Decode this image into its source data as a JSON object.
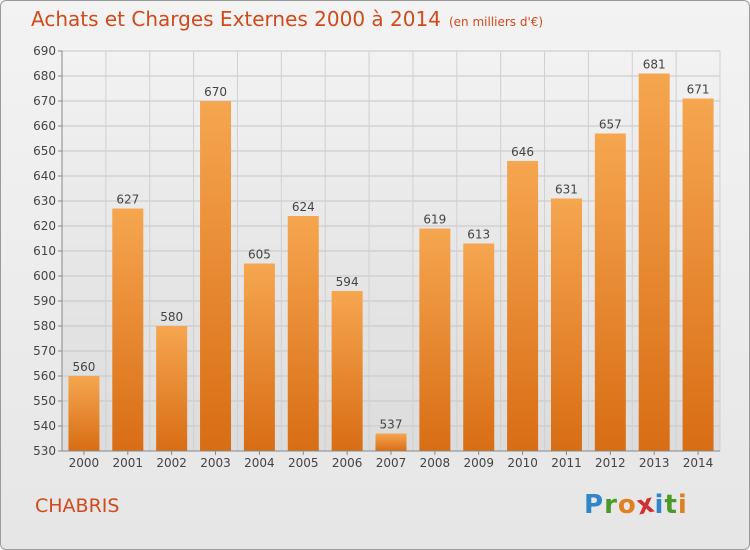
{
  "title": "Achats et Charges Externes 2000 à 2014",
  "subtitle": "(en milliers d'€)",
  "town": "CHABRIS",
  "logo": {
    "letters": [
      "P",
      "r",
      "o",
      "x",
      "i",
      "t",
      "i"
    ],
    "colors": [
      "#2f86c8",
      "#4a9a2a",
      "#e08020",
      "#d03030",
      "#2f86c8",
      "#4a9a2a",
      "#e08020"
    ]
  },
  "colors": {
    "bar": "#f39a3c",
    "accent": "#d04a1c"
  },
  "chart_data": {
    "type": "bar",
    "categories": [
      "2000",
      "2001",
      "2002",
      "2003",
      "2004",
      "2005",
      "2006",
      "2007",
      "2008",
      "2009",
      "2010",
      "2011",
      "2012",
      "2013",
      "2014"
    ],
    "values": [
      560,
      627,
      580,
      670,
      605,
      624,
      594,
      537,
      619,
      613,
      646,
      631,
      657,
      681,
      671
    ],
    "title": "Achats et Charges Externes 2000 à 2014",
    "xlabel": "",
    "ylabel": "",
    "ylim": [
      530,
      690
    ],
    "yticks": [
      530,
      540,
      550,
      560,
      570,
      580,
      590,
      600,
      610,
      620,
      630,
      640,
      650,
      660,
      670,
      680,
      690
    ],
    "grid": true,
    "data_labels": true
  }
}
